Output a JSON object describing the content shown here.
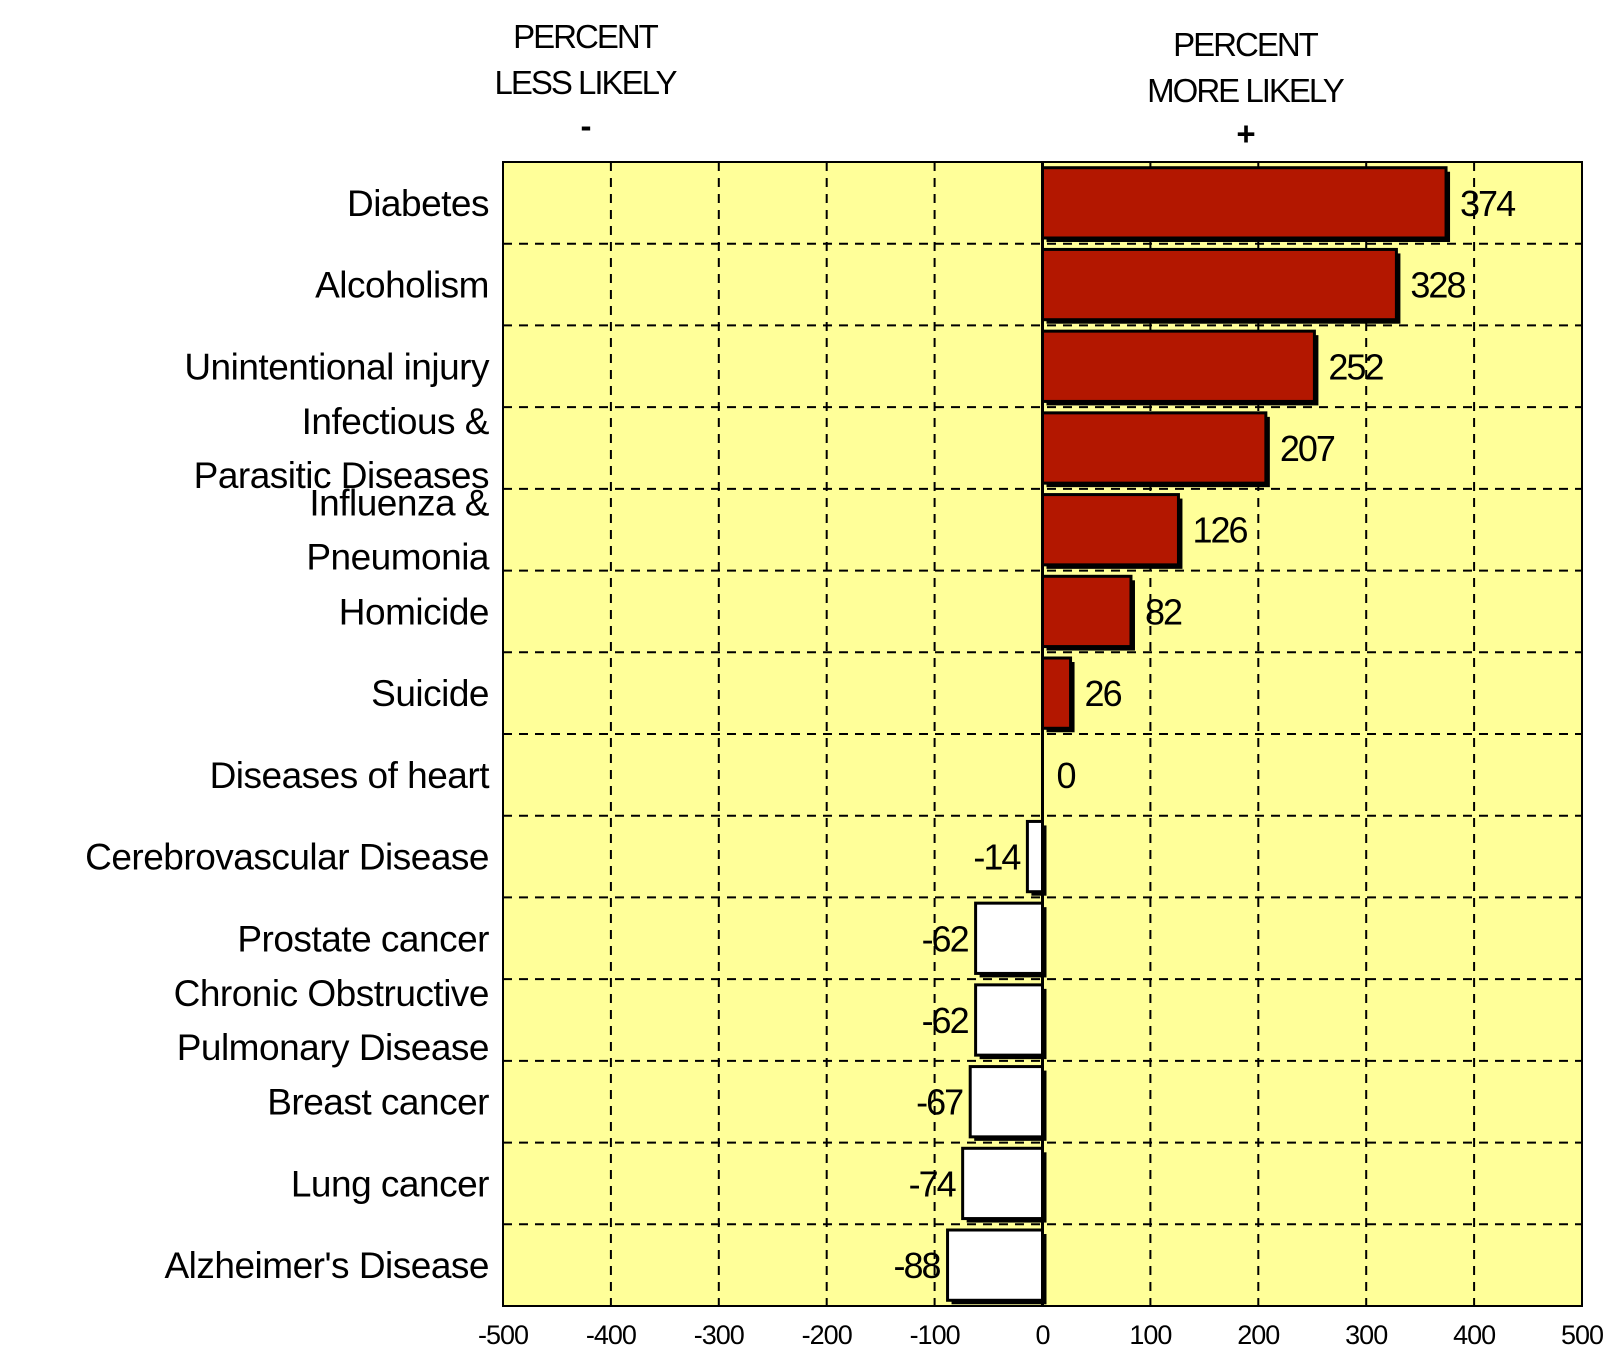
{
  "headers": {
    "left_line1": "PERCENT",
    "left_line2": "LESS LIKELY",
    "left_sign": "-",
    "right_line1": "PERCENT",
    "right_line2": "MORE LIKELY",
    "right_sign": "+"
  },
  "colors": {
    "plot_background": "#ffff99",
    "positive_bar": "#b31700",
    "negative_bar": "#ffffff",
    "bar_outline": "#000000",
    "grid": "#000000"
  },
  "chart_data": {
    "type": "bar",
    "orientation": "horizontal",
    "categories": [
      [
        "Diabetes"
      ],
      [
        "Alcoholism"
      ],
      [
        "Unintentional injury"
      ],
      [
        "Infectious &",
        "Parasitic Diseases"
      ],
      [
        "Influenza &",
        "Pneumonia"
      ],
      [
        "Homicide"
      ],
      [
        "Suicide"
      ],
      [
        "Diseases of heart"
      ],
      [
        "Cerebrovascular Disease"
      ],
      [
        "Prostate cancer"
      ],
      [
        "Chronic Obstructive",
        "Pulmonary Disease"
      ],
      [
        "Breast cancer"
      ],
      [
        "Lung cancer"
      ],
      [
        "Alzheimer's Disease"
      ]
    ],
    "values": [
      374,
      328,
      252,
      207,
      126,
      82,
      26,
      0,
      -14,
      -62,
      -62,
      -67,
      -74,
      -88
    ],
    "value_labels": [
      "374",
      "328",
      "252",
      "207",
      "126",
      "82",
      "26",
      "0",
      "-14",
      "-62",
      "-62",
      "-67",
      "-74",
      "-88"
    ],
    "xlim": [
      -500,
      500
    ],
    "xticks": [
      -500,
      -400,
      -300,
      -200,
      -100,
      0,
      100,
      200,
      300,
      400,
      500
    ],
    "xtick_labels": [
      "-500",
      "-400",
      "-300",
      "-200",
      "-100",
      "0",
      "100",
      "200",
      "300",
      "400",
      "500"
    ],
    "grid": true,
    "grid_style": "dashed",
    "legend": "none",
    "title": "",
    "xlabel": "",
    "ylabel": ""
  }
}
